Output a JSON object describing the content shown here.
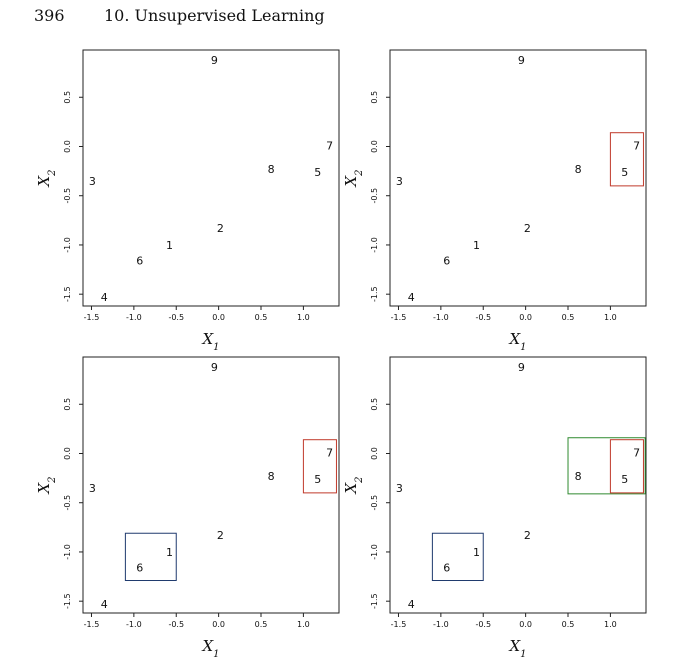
{
  "header": {
    "page_number": "396",
    "chapter_title": "10.  Unsupervised Learning"
  },
  "chart_data": {
    "type": "scatter",
    "xlabel": "X",
    "xlabel_subscript": "1",
    "ylabel": "X",
    "ylabel_subscript": "2",
    "xlim": [
      -1.6,
      1.42
    ],
    "ylim": [
      -1.62,
      0.98
    ],
    "x_ticks": [
      -1.5,
      -1.0,
      -0.5,
      0.0,
      0.5,
      1.0
    ],
    "x_tick_labels": [
      "-1.5",
      "-1.0",
      "-0.5",
      "0.0",
      "0.5",
      "1.0"
    ],
    "y_ticks": [
      -1.5,
      -1.0,
      -0.5,
      0.0,
      0.5
    ],
    "y_tick_labels": [
      "-1.5",
      "-1.0",
      "-0.5",
      "0.0",
      "0.5"
    ],
    "grid": false,
    "points": [
      {
        "label": "1",
        "x": -0.58,
        "y": -1.0
      },
      {
        "label": "2",
        "x": 0.02,
        "y": -0.83
      },
      {
        "label": "3",
        "x": -1.49,
        "y": -0.35
      },
      {
        "label": "4",
        "x": -1.35,
        "y": -1.53
      },
      {
        "label": "5",
        "x": 1.17,
        "y": -0.26
      },
      {
        "label": "6",
        "x": -0.93,
        "y": -1.16
      },
      {
        "label": "7",
        "x": 1.31,
        "y": 0.01
      },
      {
        "label": "8",
        "x": 0.62,
        "y": -0.23
      },
      {
        "label": "9",
        "x": -0.05,
        "y": 0.88
      }
    ],
    "panels": [
      {
        "boxes": []
      },
      {
        "boxes": [
          {
            "color": "#c0392b",
            "x0": 1.0,
            "x1": 1.39,
            "y0": -0.4,
            "y1": 0.14
          }
        ]
      },
      {
        "boxes": [
          {
            "color": "#c0392b",
            "x0": 1.0,
            "x1": 1.39,
            "y0": -0.4,
            "y1": 0.14
          },
          {
            "color": "#1f3a6e",
            "x0": -1.1,
            "x1": -0.5,
            "y0": -1.29,
            "y1": -0.81
          }
        ]
      },
      {
        "boxes": [
          {
            "color": "#2f8a2f",
            "x0": 0.5,
            "x1": 1.41,
            "y0": -0.41,
            "y1": 0.16
          },
          {
            "color": "#c0392b",
            "x0": 1.0,
            "x1": 1.39,
            "y0": -0.4,
            "y1": 0.14
          },
          {
            "color": "#1f3a6e",
            "x0": -1.1,
            "x1": -0.5,
            "y0": -1.29,
            "y1": -0.81
          }
        ]
      }
    ]
  }
}
